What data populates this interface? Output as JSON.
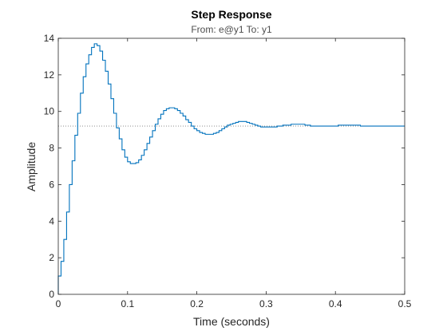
{
  "chart_data": {
    "type": "line",
    "step": true,
    "title": "Step Response",
    "subtitle": "From: e@y1  To: y1",
    "xlabel": "Time (seconds)",
    "ylabel": "Amplitude",
    "xlim": [
      0,
      0.5
    ],
    "ylim": [
      0,
      14
    ],
    "x_ticks": [
      "0",
      "0.1",
      "0.2",
      "0.3",
      "0.4",
      "0.5"
    ],
    "y_ticks": [
      "0",
      "2",
      "4",
      "6",
      "8",
      "10",
      "12",
      "14"
    ],
    "grid": false,
    "reference_line": {
      "value": 9.2,
      "style": "dotted"
    },
    "series": [
      {
        "color": "#0072BD",
        "x": [
          0,
          0.004,
          0.008,
          0.012,
          0.016,
          0.02,
          0.024,
          0.028,
          0.032,
          0.036,
          0.04,
          0.044,
          0.048,
          0.052,
          0.056,
          0.06,
          0.064,
          0.068,
          0.072,
          0.076,
          0.08,
          0.084,
          0.088,
          0.092,
          0.096,
          0.1,
          0.104,
          0.108,
          0.112,
          0.116,
          0.12,
          0.124,
          0.128,
          0.132,
          0.136,
          0.14,
          0.144,
          0.148,
          0.152,
          0.156,
          0.16,
          0.164,
          0.168,
          0.172,
          0.176,
          0.18,
          0.184,
          0.188,
          0.192,
          0.196,
          0.2,
          0.204,
          0.208,
          0.212,
          0.216,
          0.22,
          0.224,
          0.228,
          0.232,
          0.236,
          0.24,
          0.244,
          0.248,
          0.252,
          0.256,
          0.26,
          0.264,
          0.268,
          0.272,
          0.276,
          0.28,
          0.284,
          0.288,
          0.292,
          0.296,
          0.3,
          0.304,
          0.308,
          0.312,
          0.316,
          0.32,
          0.324,
          0.328,
          0.332,
          0.336,
          0.34,
          0.344,
          0.348,
          0.352,
          0.356,
          0.36,
          0.364,
          0.368,
          0.372,
          0.376,
          0.38,
          0.384,
          0.388,
          0.392,
          0.396,
          0.4,
          0.404,
          0.408,
          0.412,
          0.416,
          0.42,
          0.424,
          0.428,
          0.432,
          0.436,
          0.44,
          0.444,
          0.448,
          0.452,
          0.456,
          0.46,
          0.464,
          0.468,
          0.472,
          0.476,
          0.48,
          0.484,
          0.488,
          0.492,
          0.496,
          0.5
        ],
        "y": [
          1.0,
          1.8,
          3.0,
          4.5,
          6.0,
          7.3,
          8.7,
          9.9,
          11.0,
          11.9,
          12.6,
          13.1,
          13.5,
          13.7,
          13.6,
          13.3,
          12.8,
          12.2,
          11.5,
          10.7,
          9.9,
          9.1,
          8.5,
          7.9,
          7.5,
          7.25,
          7.15,
          7.15,
          7.2,
          7.35,
          7.6,
          7.9,
          8.25,
          8.6,
          8.95,
          9.3,
          9.6,
          9.85,
          10.05,
          10.15,
          10.2,
          10.2,
          10.15,
          10.05,
          9.9,
          9.75,
          9.55,
          9.4,
          9.2,
          9.05,
          8.95,
          8.85,
          8.8,
          8.75,
          8.75,
          8.75,
          8.8,
          8.85,
          8.95,
          9.05,
          9.15,
          9.25,
          9.3,
          9.35,
          9.4,
          9.45,
          9.45,
          9.45,
          9.4,
          9.35,
          9.3,
          9.25,
          9.2,
          9.15,
          9.15,
          9.15,
          9.15,
          9.15,
          9.15,
          9.2,
          9.2,
          9.25,
          9.25,
          9.25,
          9.3,
          9.3,
          9.3,
          9.3,
          9.3,
          9.25,
          9.25,
          9.2,
          9.2,
          9.2,
          9.2,
          9.2,
          9.2,
          9.2,
          9.2,
          9.2,
          9.2,
          9.25,
          9.25,
          9.25,
          9.25,
          9.25,
          9.25,
          9.25,
          9.25,
          9.2,
          9.2,
          9.2,
          9.2,
          9.2,
          9.2,
          9.2,
          9.2,
          9.2,
          9.2,
          9.2,
          9.2,
          9.2,
          9.2,
          9.2,
          9.2,
          9.2
        ]
      }
    ]
  }
}
